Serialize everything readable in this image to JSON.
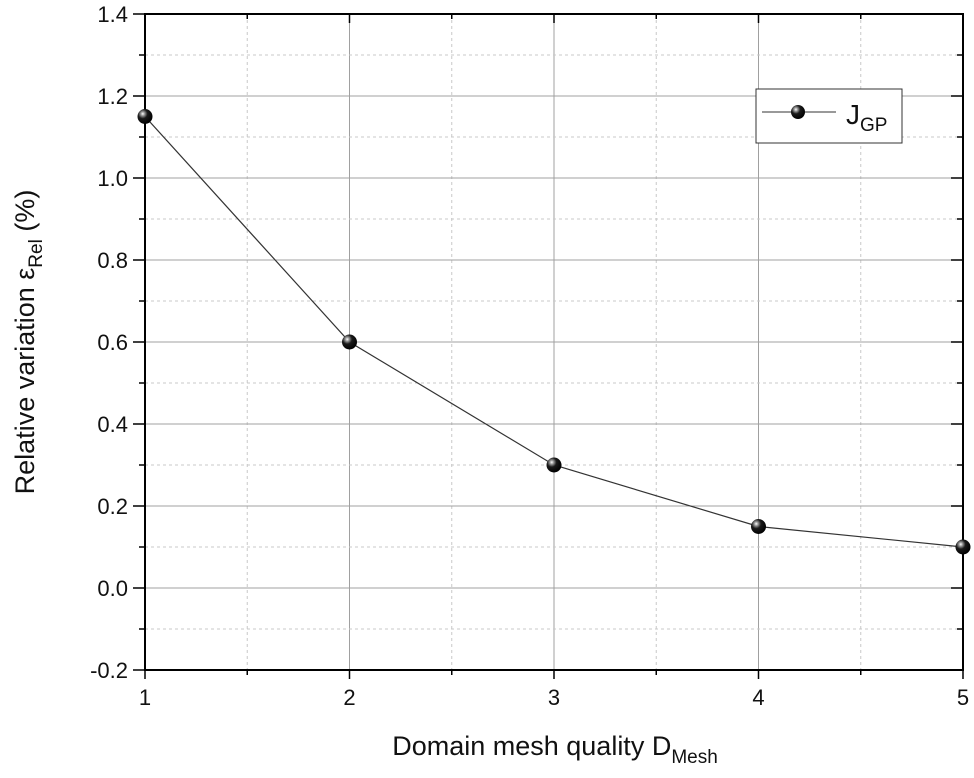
{
  "chart_data": {
    "type": "line",
    "title": "",
    "xlabel": "Domain mesh quality D_Mesh",
    "xlabel_main": "Domain mesh quality D",
    "xlabel_sub": "Mesh",
    "ylabel": "Relative variation ε_Rel (%)",
    "ylabel_main": "Relative variation ε",
    "ylabel_sub": "Rel",
    "ylabel_suffix": " (%)",
    "xlim": [
      1,
      5
    ],
    "ylim": [
      -0.2,
      1.4
    ],
    "x_ticks": [
      "1",
      "2",
      "3",
      "4",
      "5"
    ],
    "y_ticks": [
      "-0.2",
      "0.0",
      "0.2",
      "0.4",
      "0.6",
      "0.8",
      "1.0",
      "1.2",
      "1.4"
    ],
    "grid": true,
    "legend_position": "upper right",
    "x": [
      1,
      2,
      3,
      4,
      5
    ],
    "series": [
      {
        "name": "J_GP",
        "name_main": "J",
        "name_sub": "GP",
        "values": [
          1.15,
          0.6,
          0.3,
          0.15,
          0.1
        ],
        "color": "#000000",
        "marker": "sphere"
      }
    ]
  },
  "colors": {
    "axis": "#000000",
    "major_grid": "#a0a0a0",
    "minor_grid": "#c8c8c8",
    "line": "#333333"
  }
}
